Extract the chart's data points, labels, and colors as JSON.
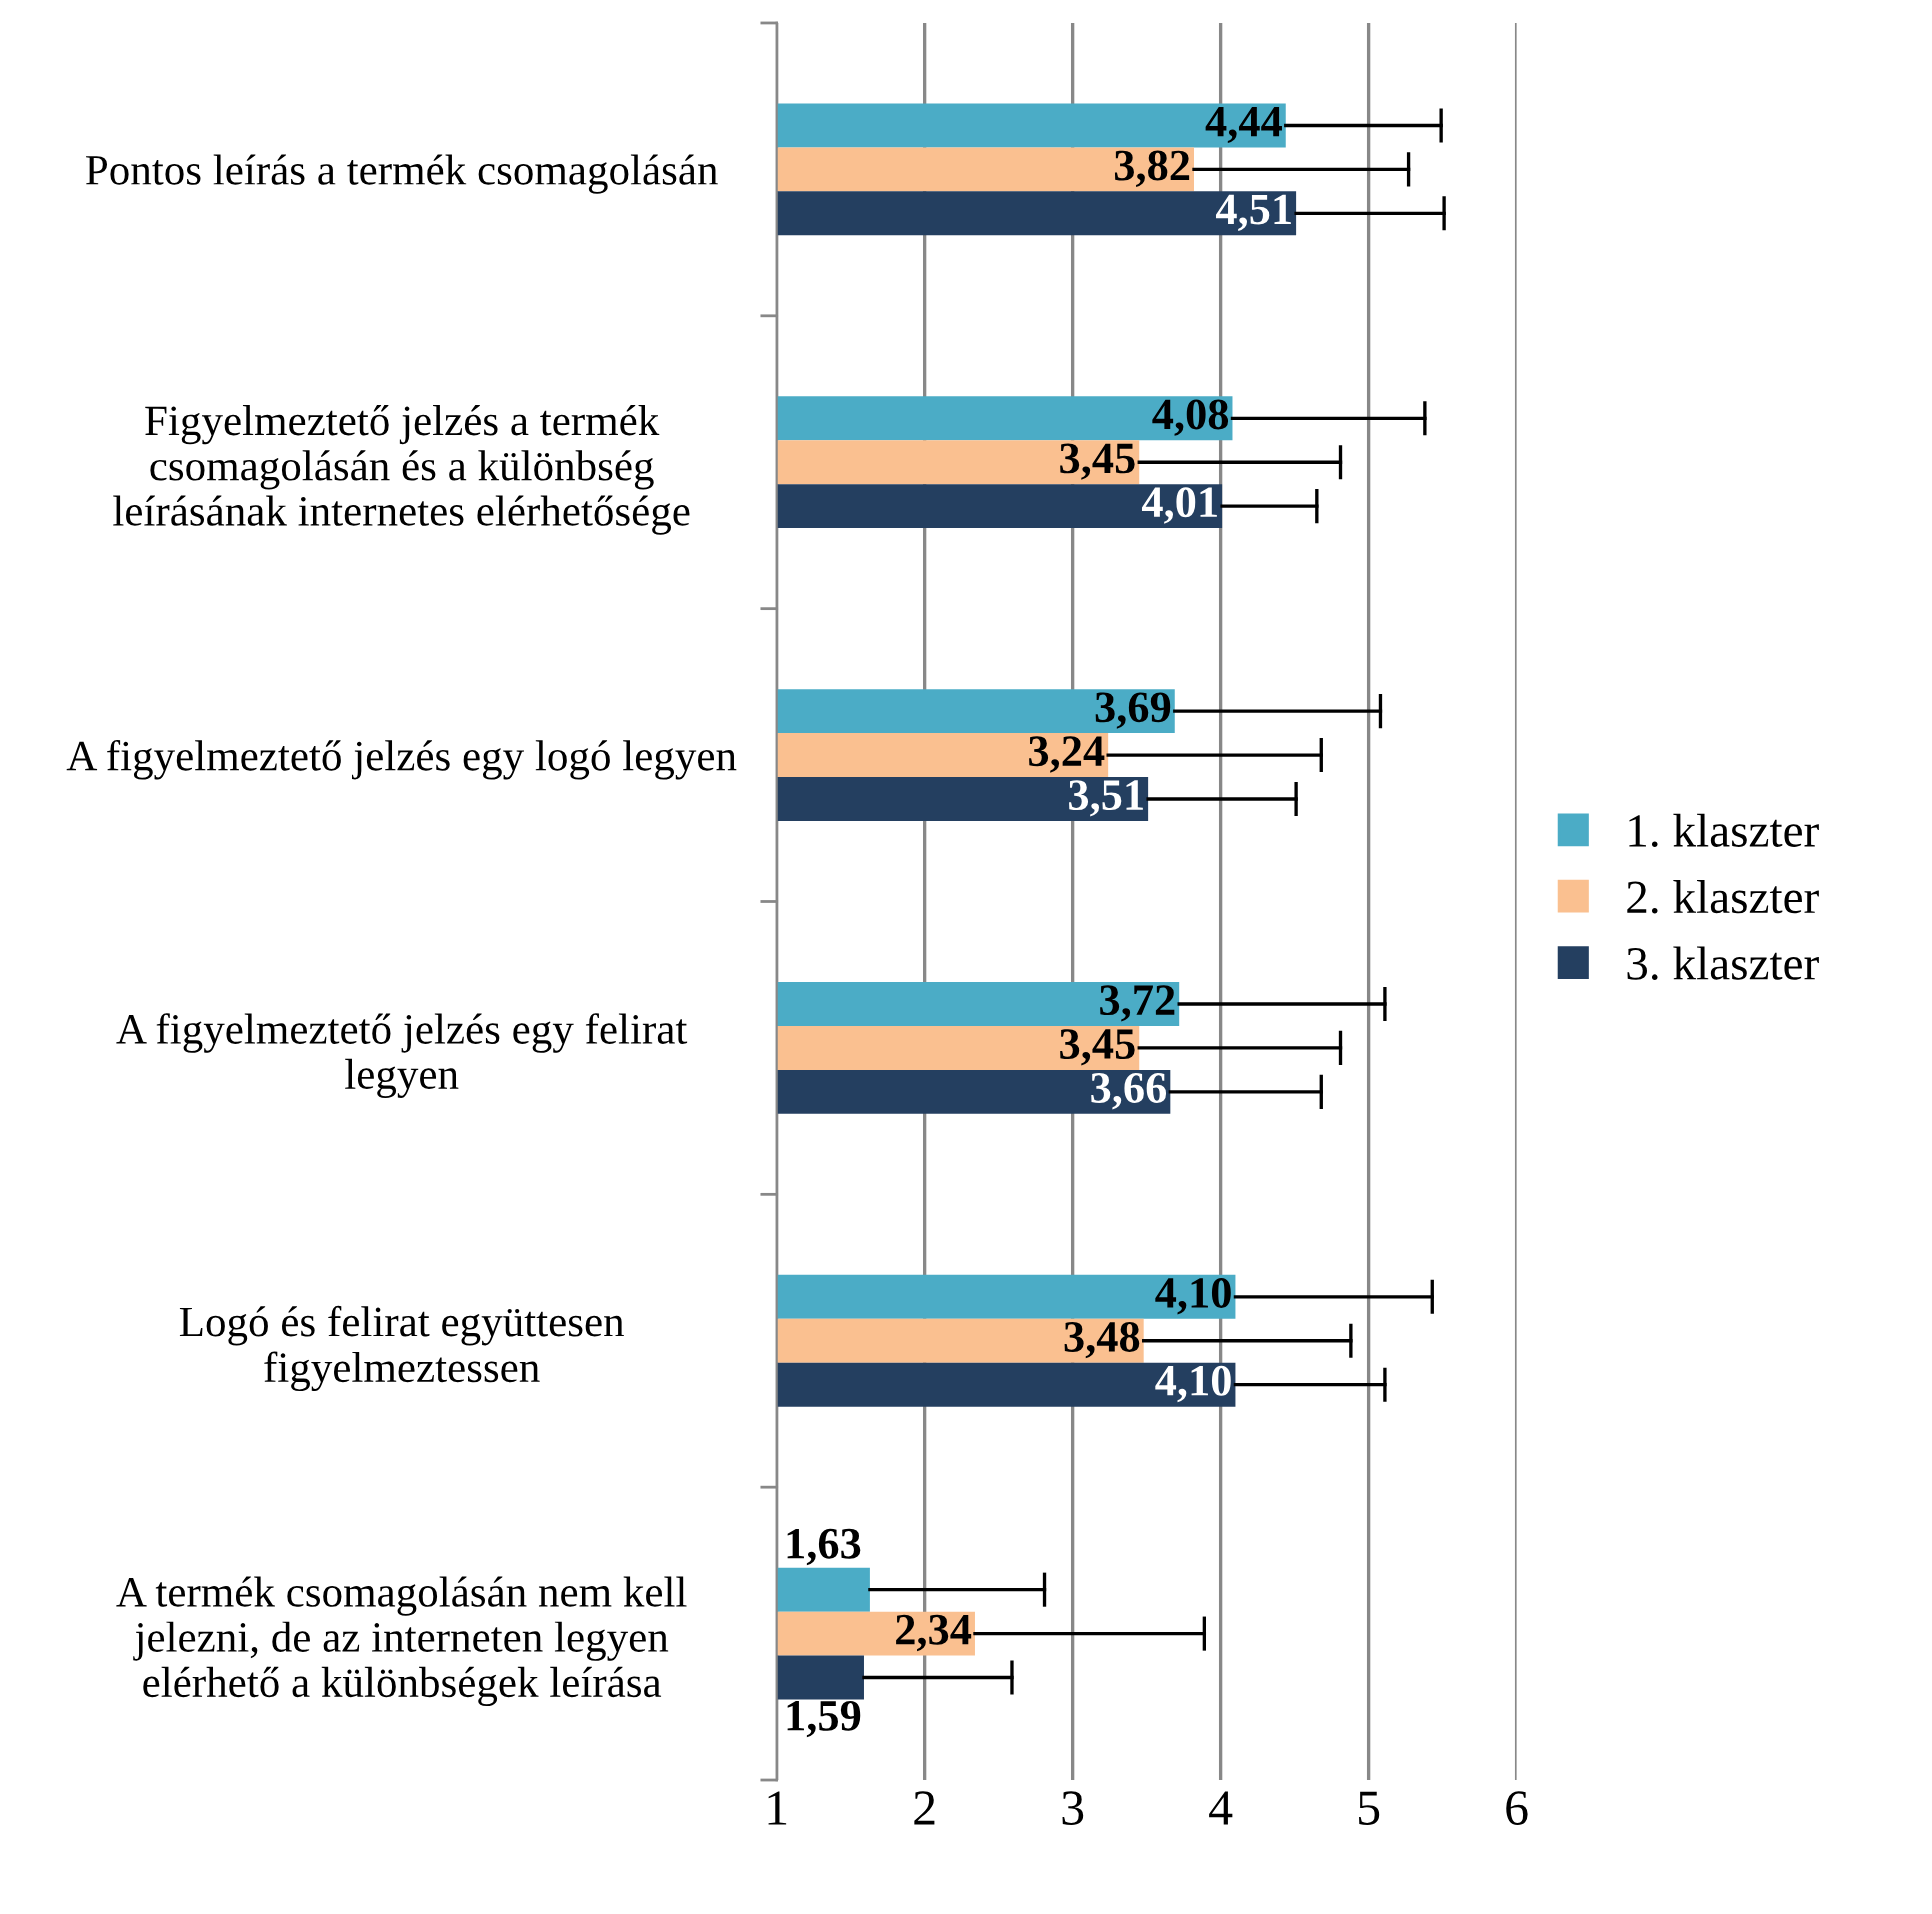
{
  "chart_data": {
    "type": "bar",
    "orientation": "horizontal",
    "categories": [
      "Pontos leírás a termék csomagolásán",
      "Figyelmeztető jelzés a termék csomagolásán és a különbség leírásának internetes elérhetősége",
      "A figyelmeztető jelzés egy logó legyen",
      "A figyelmeztető jelzés egy felirat legyen",
      "Logó és felirat együttesen figyelmeztessen",
      "A termék csomagolásán nem kell jelezni, de az interneten legyen elérhető a különbségek leírása"
    ],
    "series": [
      {
        "name": "1. klaszter",
        "color": "#4bacc6",
        "values": [
          4.44,
          4.08,
          3.69,
          3.72,
          4.1,
          1.63
        ],
        "value_labels": [
          "4,44",
          "4,08",
          "3,69",
          "3,72",
          "4,10",
          "1,63"
        ],
        "errors": [
          [
            4.44,
            5.49
          ],
          [
            4.08,
            5.38
          ],
          [
            3.69,
            5.08
          ],
          [
            3.72,
            5.11
          ],
          [
            4.1,
            5.43
          ],
          [
            1.63,
            2.81
          ]
        ]
      },
      {
        "name": "2. klaszter",
        "color": "#fac090",
        "values": [
          3.82,
          3.45,
          3.24,
          3.45,
          3.48,
          2.34
        ],
        "value_labels": [
          "3,82",
          "3,45",
          "3,24",
          "3,45",
          "3,48",
          "2,34"
        ],
        "errors": [
          [
            3.82,
            5.27
          ],
          [
            3.45,
            4.81
          ],
          [
            3.24,
            4.68
          ],
          [
            3.45,
            4.81
          ],
          [
            3.48,
            4.88
          ],
          [
            2.34,
            3.89
          ]
        ]
      },
      {
        "name": "3. klaszter",
        "color": "#243f60",
        "values": [
          4.51,
          4.01,
          3.51,
          3.66,
          4.1,
          1.59
        ],
        "value_labels": [
          "4,51",
          "4,01",
          "3,51",
          "3,66",
          "4,10",
          "1,59"
        ],
        "errors": [
          [
            4.51,
            5.51
          ],
          [
            4.01,
            4.65
          ],
          [
            3.51,
            4.51
          ],
          [
            3.66,
            4.68
          ],
          [
            4.1,
            5.11
          ],
          [
            1.59,
            2.59
          ]
        ]
      }
    ],
    "xlim": [
      1,
      6
    ],
    "xticks": [
      1,
      2,
      3,
      4,
      5,
      6
    ],
    "grid": "x",
    "legend": "right"
  }
}
